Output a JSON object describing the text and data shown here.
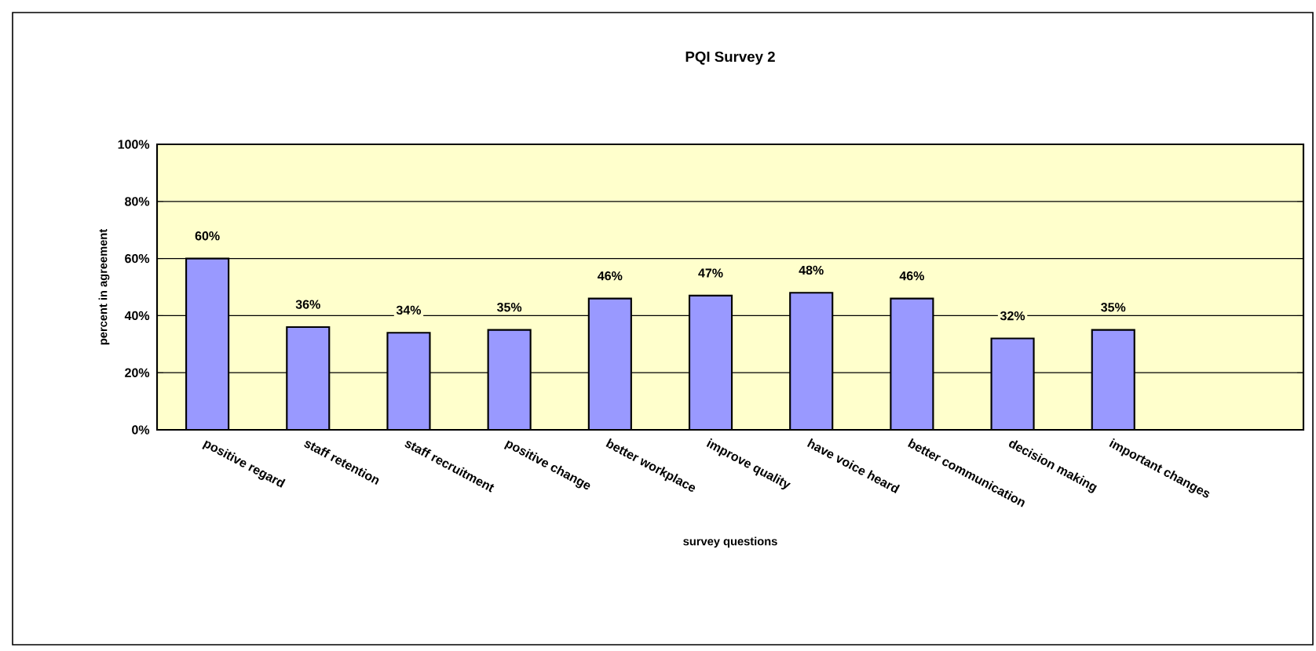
{
  "chart_data": {
    "type": "bar",
    "title": "PQI Survey 2",
    "xlabel": "survey questions",
    "ylabel": "percent in agreement",
    "categories": [
      "positive regard",
      "staff retention",
      "staff recruitment",
      "positive change",
      "better workplace",
      "improve quality",
      "have voice heard",
      "better communication",
      "decision making",
      "important changes"
    ],
    "values": [
      60,
      36,
      34,
      35,
      46,
      47,
      48,
      46,
      32,
      35
    ],
    "value_labels": [
      "60%",
      "36%",
      "34%",
      "35%",
      "46%",
      "47%",
      "48%",
      "46%",
      "32%",
      "35%"
    ],
    "color": "#9999ff",
    "ylim": [
      0,
      100
    ],
    "yticks": [
      {
        "value": 0,
        "label": "0%"
      },
      {
        "value": 20,
        "label": "20%"
      },
      {
        "value": 40,
        "label": "40%"
      },
      {
        "value": 60,
        "label": "60%"
      },
      {
        "value": 80,
        "label": "80%"
      },
      {
        "value": 100,
        "label": "100%"
      }
    ],
    "grid": "y"
  }
}
